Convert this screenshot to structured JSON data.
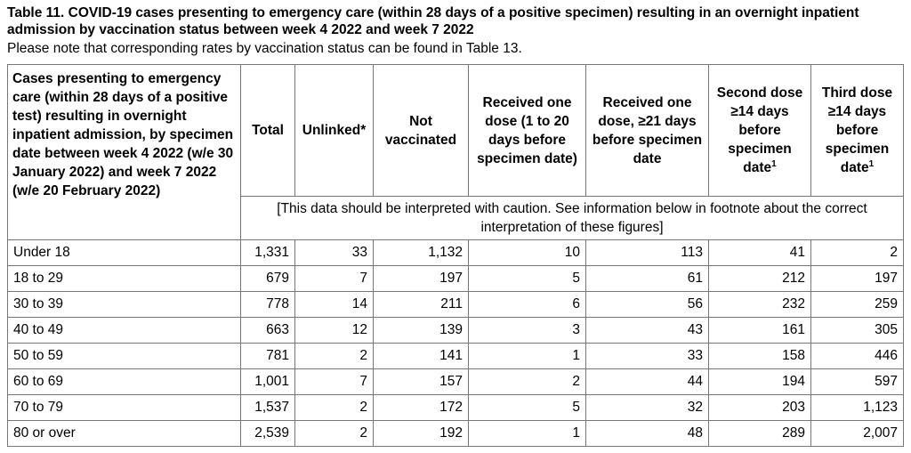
{
  "title": "Table 11. COVID-19 cases presenting to emergency care (within 28 days of a positive specimen) resulting in an overnight inpatient admission by vaccination status between week 4 2022 and week 7 2022",
  "note": "Please note that corresponding rates by vaccination status can be found in Table 13.",
  "table": {
    "row_header": "Cases presenting to emergency care (within 28 days of a positive test) resulting in overnight inpatient admission, by specimen date between week 4 2022 (w/e 30 January 2022) and week 7 2022 (w/e 20 February 2022)",
    "columns": [
      "Total",
      "Unlinked*",
      "Not vaccinated",
      "Received one dose (1 to 20 days before specimen date)",
      "Received one dose, ≥21 days before specimen date",
      "Second dose ≥14 days before specimen date",
      "Third dose ≥14 days before specimen date"
    ],
    "superscript": "1",
    "caution": "[This data should be interpreted with caution. See information below in footnote about the correct interpretation of these figures]",
    "rows": [
      {
        "label": "Under 18",
        "values": [
          "1,331",
          "33",
          "1,132",
          "10",
          "113",
          "41",
          "2"
        ]
      },
      {
        "label": "18 to 29",
        "values": [
          "679",
          "7",
          "197",
          "5",
          "61",
          "212",
          "197"
        ]
      },
      {
        "label": "30 to 39",
        "values": [
          "778",
          "14",
          "211",
          "6",
          "56",
          "232",
          "259"
        ]
      },
      {
        "label": "40 to 49",
        "values": [
          "663",
          "12",
          "139",
          "3",
          "43",
          "161",
          "305"
        ]
      },
      {
        "label": "50 to 59",
        "values": [
          "781",
          "2",
          "141",
          "1",
          "33",
          "158",
          "446"
        ]
      },
      {
        "label": "60 to 69",
        "values": [
          "1,001",
          "7",
          "157",
          "2",
          "44",
          "194",
          "597"
        ]
      },
      {
        "label": "70 to 79",
        "values": [
          "1,537",
          "2",
          "172",
          "5",
          "32",
          "203",
          "1,123"
        ]
      },
      {
        "label": "80 or over",
        "values": [
          "2,539",
          "2",
          "192",
          "1",
          "48",
          "289",
          "2,007"
        ]
      }
    ]
  }
}
